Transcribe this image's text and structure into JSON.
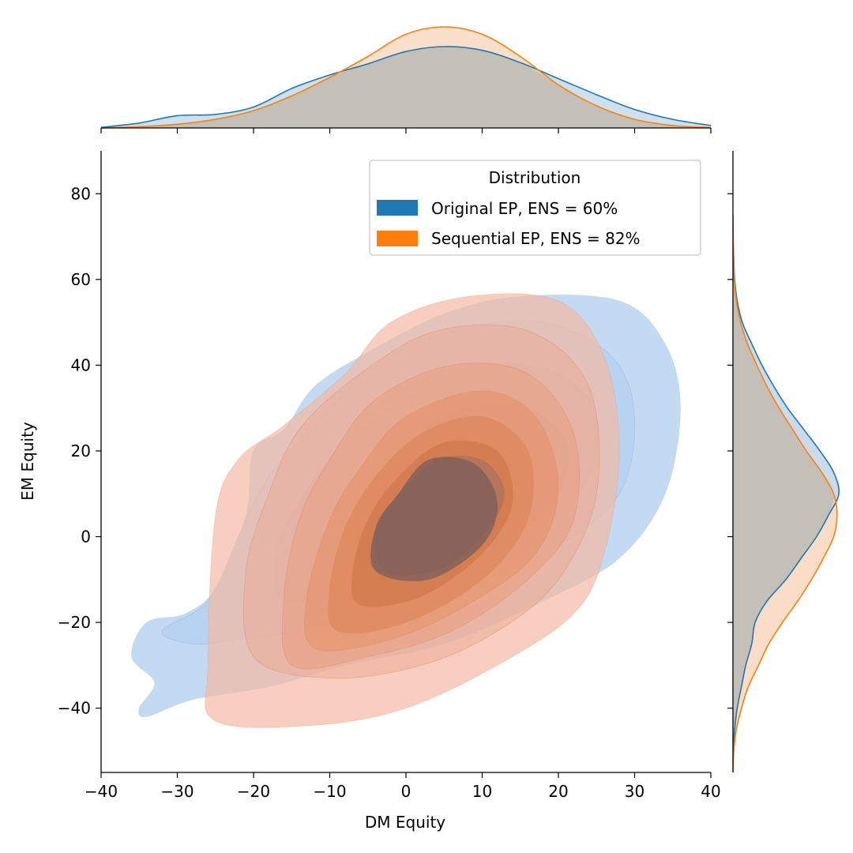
{
  "chart_data": {
    "type": "kde-joint",
    "xlabel": "DM Equity",
    "ylabel": "EM Equity",
    "xlim": [
      -40,
      40
    ],
    "ylim": [
      -55,
      90
    ],
    "x_ticks": [
      -40,
      -30,
      -20,
      -10,
      0,
      10,
      20,
      30,
      40
    ],
    "x_tick_labels": [
      "−40",
      "−30",
      "−20",
      "−10",
      "0",
      "10",
      "20",
      "30",
      "40"
    ],
    "y_ticks": [
      -40,
      -20,
      0,
      20,
      40,
      60,
      80
    ],
    "y_tick_labels": [
      "−40",
      "−20",
      "0",
      "20",
      "40",
      "60",
      "80"
    ],
    "grid": false,
    "legend": {
      "title": "Distribution",
      "placement": "top-right",
      "entries": [
        {
          "label": "Original EP, ENS = 60%",
          "color": "#1f77b4"
        },
        {
          "label": "Sequential EP, ENS = 82%",
          "color": "#ff7f0e"
        }
      ]
    },
    "series": [
      {
        "name": "Original EP, ENS = 60%",
        "color": "#1f77b4",
        "fill_color": "#7fb0e8",
        "marginal_x": {
          "x": [
            -40,
            -35,
            -30,
            -25,
            -20,
            -15,
            -10,
            -5,
            0,
            5,
            10,
            15,
            20,
            25,
            30,
            35,
            40
          ],
          "density": [
            0.0005,
            0.004,
            0.01,
            0.011,
            0.017,
            0.032,
            0.043,
            0.052,
            0.062,
            0.066,
            0.063,
            0.053,
            0.04,
            0.027,
            0.015,
            0.007,
            0.002
          ]
        },
        "marginal_y": {
          "y": [
            -55,
            -50,
            -45,
            -40,
            -35,
            -30,
            -25,
            -20,
            -15,
            -10,
            -5,
            0,
            5,
            10,
            15,
            20,
            25,
            30,
            35,
            40,
            45,
            50,
            55,
            60,
            65,
            70,
            75
          ],
          "density": [
            0.0,
            0.0005,
            0.002,
            0.005,
            0.01,
            0.015,
            0.022,
            0.026,
            0.04,
            0.062,
            0.08,
            0.098,
            0.112,
            0.124,
            0.118,
            0.102,
            0.083,
            0.064,
            0.048,
            0.034,
            0.022,
            0.011,
            0.005,
            0.002,
            0.0008,
            0.0002,
            0.0
          ]
        },
        "kde_contours": [
          [
            [
              -34,
              -42
            ],
            [
              -28,
              -38
            ],
            [
              -18,
              -35
            ],
            [
              -8,
              -30
            ],
            [
              5,
              -25
            ],
            [
              18,
              -15
            ],
            [
              28,
              -5
            ],
            [
              34,
              10
            ],
            [
              36,
              30
            ],
            [
              34,
              45
            ],
            [
              28,
              55
            ],
            [
              15,
              56
            ],
            [
              5,
              52
            ],
            [
              -5,
              43
            ],
            [
              -12,
              35
            ],
            [
              -16,
              25
            ],
            [
              -20,
              20
            ],
            [
              -21,
              5
            ],
            [
              -25,
              -12
            ],
            [
              -29,
              -18
            ],
            [
              -34,
              -20
            ],
            [
              -36,
              -28
            ],
            [
              -33,
              -34
            ],
            [
              -35,
              -40
            ]
          ],
          [
            [
              -28,
              -25
            ],
            [
              -22,
              -24
            ],
            [
              -14,
              -22
            ],
            [
              -4,
              -18
            ],
            [
              8,
              -12
            ],
            [
              20,
              -2
            ],
            [
              28,
              10
            ],
            [
              30,
              28
            ],
            [
              27,
              42
            ],
            [
              18,
              50
            ],
            [
              6,
              48
            ],
            [
              -4,
              40
            ],
            [
              -12,
              26
            ],
            [
              -18,
              14
            ],
            [
              -22,
              0
            ],
            [
              -26,
              -15
            ],
            [
              -32,
              -22
            ]
          ],
          [
            [
              -16,
              -15
            ],
            [
              -6,
              -13
            ],
            [
              6,
              -8
            ],
            [
              18,
              2
            ],
            [
              24,
              14
            ],
            [
              25,
              28
            ],
            [
              20,
              38
            ],
            [
              10,
              40
            ],
            [
              0,
              32
            ],
            [
              -8,
              22
            ],
            [
              -14,
              8
            ],
            [
              -17,
              -4
            ]
          ],
          [
            [
              -4,
              -8
            ],
            [
              6,
              -5
            ],
            [
              14,
              0
            ],
            [
              20,
              10
            ],
            [
              21,
              22
            ],
            [
              16,
              30
            ],
            [
              8,
              30
            ],
            [
              0,
              22
            ],
            [
              -5,
              12
            ],
            [
              -7,
              2
            ]
          ],
          [
            [
              -4,
              -6
            ],
            [
              3,
              -6
            ],
            [
              10,
              0
            ],
            [
              14,
              8
            ],
            [
              13,
              16
            ],
            [
              7,
              19
            ],
            [
              1,
              14
            ],
            [
              -3,
              6
            ],
            [
              -5,
              0
            ]
          ]
        ]
      },
      {
        "name": "Sequential EP, ENS = 82%",
        "color": "#ff7f0e",
        "fill_color": "#f0967a",
        "marginal_x": {
          "x": [
            -40,
            -35,
            -30,
            -25,
            -20,
            -15,
            -10,
            -5,
            0,
            5,
            10,
            15,
            20,
            25,
            30,
            35,
            40
          ],
          "density": [
            0.0,
            0.001,
            0.003,
            0.007,
            0.014,
            0.026,
            0.041,
            0.058,
            0.076,
            0.082,
            0.076,
            0.058,
            0.035,
            0.018,
            0.007,
            0.002,
            0.0003
          ]
        },
        "marginal_y": {
          "y": [
            -55,
            -50,
            -45,
            -40,
            -35,
            -30,
            -25,
            -20,
            -15,
            -10,
            -5,
            0,
            5,
            10,
            15,
            20,
            25,
            30,
            35,
            40,
            45,
            50,
            55,
            60,
            65,
            70,
            75
          ],
          "density": [
            0.0,
            0.001,
            0.004,
            0.01,
            0.018,
            0.03,
            0.042,
            0.058,
            0.076,
            0.092,
            0.106,
            0.118,
            0.122,
            0.118,
            0.104,
            0.086,
            0.07,
            0.054,
            0.04,
            0.028,
            0.017,
            0.009,
            0.004,
            0.0015,
            0.0005,
            0.0001,
            0.0
          ]
        },
        "kde_contours": [
          [
            [
              -25,
              -43
            ],
            [
              -12,
              -44
            ],
            [
              0,
              -40
            ],
            [
              12,
              -30
            ],
            [
              22,
              -18
            ],
            [
              26,
              -4
            ],
            [
              28,
              20
            ],
            [
              26,
              42
            ],
            [
              20,
              55
            ],
            [
              8,
              56
            ],
            [
              -2,
              50
            ],
            [
              -8,
              38
            ],
            [
              -16,
              26
            ],
            [
              -22,
              18
            ],
            [
              -25,
              5
            ],
            [
              -26,
              -30
            ]
          ],
          [
            [
              -20,
              -28
            ],
            [
              -10,
              -33
            ],
            [
              2,
              -30
            ],
            [
              12,
              -22
            ],
            [
              20,
              -10
            ],
            [
              25,
              10
            ],
            [
              24,
              35
            ],
            [
              16,
              48
            ],
            [
              4,
              48
            ],
            [
              -6,
              38
            ],
            [
              -14,
              25
            ],
            [
              -18,
              10
            ],
            [
              -21,
              -8
            ]
          ],
          [
            [
              -15,
              -30
            ],
            [
              -5,
              -28
            ],
            [
              6,
              -22
            ],
            [
              16,
              -10
            ],
            [
              22,
              4
            ],
            [
              22,
              24
            ],
            [
              16,
              38
            ],
            [
              6,
              40
            ],
            [
              -4,
              32
            ],
            [
              -10,
              18
            ],
            [
              -14,
              4
            ],
            [
              -16,
              -14
            ]
          ],
          [
            [
              -12,
              -26
            ],
            [
              -2,
              -24
            ],
            [
              8,
              -16
            ],
            [
              17,
              -4
            ],
            [
              20,
              12
            ],
            [
              17,
              28
            ],
            [
              10,
              34
            ],
            [
              0,
              28
            ],
            [
              -6,
              16
            ],
            [
              -10,
              4
            ],
            [
              -13,
              -14
            ]
          ],
          [
            [
              -9,
              -22
            ],
            [
              0,
              -20
            ],
            [
              10,
              -10
            ],
            [
              16,
              4
            ],
            [
              16,
              20
            ],
            [
              10,
              28
            ],
            [
              2,
              24
            ],
            [
              -4,
              14
            ],
            [
              -8,
              2
            ],
            [
              -10,
              -12
            ]
          ],
          [
            [
              -6,
              -16
            ],
            [
              2,
              -14
            ],
            [
              10,
              -4
            ],
            [
              14,
              8
            ],
            [
              12,
              20
            ],
            [
              5,
              22
            ],
            [
              -1,
              14
            ],
            [
              -5,
              4
            ],
            [
              -7,
              -8
            ]
          ],
          [
            [
              -3,
              -8
            ],
            [
              4,
              -8
            ],
            [
              10,
              0
            ],
            [
              13,
              10
            ],
            [
              10,
              18
            ],
            [
              4,
              18
            ],
            [
              -1,
              10
            ],
            [
              -4,
              2
            ]
          ]
        ]
      }
    ]
  }
}
